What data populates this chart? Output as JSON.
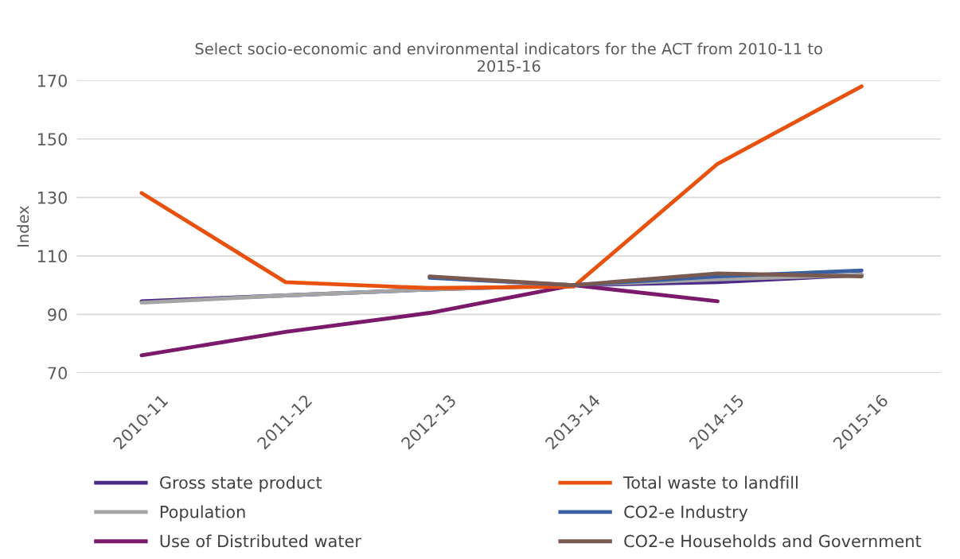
{
  "chart_data": {
    "type": "line",
    "title": "Select socio-economic and environmental indicators for the ACT from 2010-11 to\n2015-16",
    "ylabel": "Index",
    "categories": [
      "2010-11",
      "2011-12",
      "2012-13",
      "2013-14",
      "2014-15",
      "2015-16"
    ],
    "series": [
      {
        "name": "Gross state product",
        "color": "#4b2a87",
        "values": [
          94.5,
          96.5,
          98.5,
          100,
          101,
          103.5
        ]
      },
      {
        "name": "Population",
        "color": "#a5a5a5",
        "values": [
          94,
          96.5,
          98.5,
          100,
          102,
          103.5
        ]
      },
      {
        "name": "Use of Distributed water",
        "color": "#7b1a6b",
        "values": [
          76,
          84,
          90.5,
          100,
          94.5,
          null
        ]
      },
      {
        "name": "Total waste to landfill",
        "color": "#e8520e",
        "values": [
          131.5,
          101,
          99,
          99.5,
          141.5,
          168
        ]
      },
      {
        "name": "CO2-e Industry",
        "color": "#3a5fa0",
        "values": [
          null,
          null,
          102.5,
          100,
          103,
          105
        ]
      },
      {
        "name": "CO2-e Households and Government",
        "color": "#7a5a50",
        "values": [
          null,
          null,
          103,
          100,
          104,
          103
        ]
      }
    ],
    "ylim": [
      70,
      170
    ],
    "yticks": [
      70,
      90,
      110,
      130,
      150,
      170
    ],
    "grid": "y",
    "legend": "bottom",
    "marker": "none",
    "line_style": "solid"
  }
}
